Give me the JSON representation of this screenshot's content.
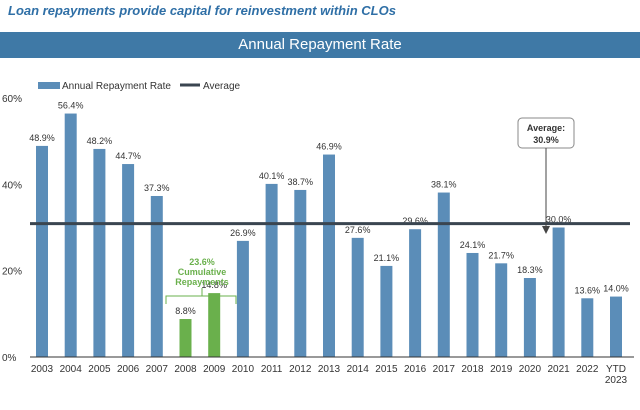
{
  "header": {
    "subtitle": "Loan repayments provide capital for reinvestment within CLOs",
    "banner": "Annual Repayment Rate"
  },
  "colors": {
    "bar": "#5b8db8",
    "highlight": "#6ab04c",
    "average": "#3a4550",
    "axis": "#333333"
  },
  "chart_data": {
    "type": "bar",
    "title": "Annual Repayment Rate",
    "categories": [
      "2003",
      "2004",
      "2005",
      "2006",
      "2007",
      "2008",
      "2009",
      "2010",
      "2011",
      "2012",
      "2013",
      "2014",
      "2015",
      "2016",
      "2017",
      "2018",
      "2019",
      "2020",
      "2021",
      "2022",
      "YTD 2023"
    ],
    "values": [
      48.9,
      56.4,
      48.2,
      44.7,
      37.3,
      8.8,
      14.8,
      26.9,
      40.1,
      38.7,
      46.9,
      27.6,
      21.1,
      29.6,
      38.1,
      24.1,
      21.7,
      18.3,
      30.0,
      13.6,
      14.0
    ],
    "value_labels": [
      "48.9%",
      "56.4%",
      "48.2%",
      "44.7%",
      "37.3%",
      "8.8%",
      "14.8%",
      "26.9%",
      "40.1%",
      "38.7%",
      "46.9%",
      "27.6%",
      "21.1%",
      "29.6%",
      "38.1%",
      "24.1%",
      "21.7%",
      "18.3%",
      "30.0%",
      "13.6%",
      "14.0%"
    ],
    "highlighted": [
      "2008",
      "2009"
    ],
    "average": 30.9,
    "ylim": [
      0,
      60
    ],
    "yticks": [
      0,
      20,
      40,
      60
    ],
    "ytick_labels": [
      "0%",
      "20%",
      "40%",
      "60%"
    ],
    "legend": {
      "bar_label": "Annual Repayment Rate",
      "line_label": "Average",
      "position": "top-left"
    },
    "annotations": {
      "average_box": [
        "Average:",
        "30.9%"
      ],
      "cumulative": [
        "23.6%",
        "Cumulative",
        "Repayments"
      ]
    }
  }
}
